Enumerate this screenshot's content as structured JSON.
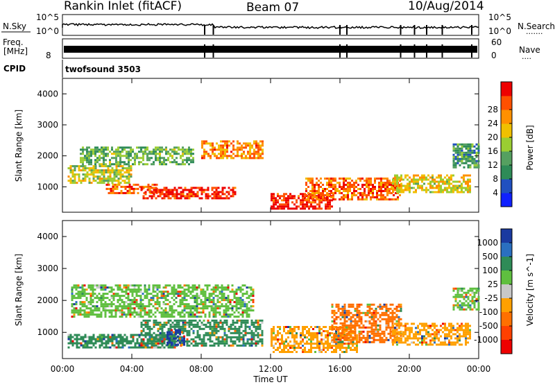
{
  "header": {
    "station": "Rankin Inlet (fitACF)",
    "beam": "Beam 07",
    "date": "10/Aug/2014"
  },
  "top_panels": {
    "nsky_label": "N.Sky",
    "nsearch_label": "N.Search",
    "nsearch_marker": ".......",
    "nsky_ticks": [
      "10^5",
      "10^0"
    ],
    "nsearch_ticks": [
      "10^5",
      "10^0"
    ],
    "freq_label_1": "Freq.",
    "freq_label_2": "[MHz]",
    "freq_ticks": [
      "8"
    ],
    "nave_label": "Nave",
    "nave_marker": "....",
    "nave_ticks": [
      "60",
      "0"
    ],
    "cpid_label": "CPID",
    "cpid_value": "twofsound 3503"
  },
  "colors": {
    "power_scale": [
      "#1020ff",
      "#2050c0",
      "#2e8b57",
      "#55a060",
      "#9acd32",
      "#f0c000",
      "#ff9000",
      "#ff5000",
      "#ee0000"
    ],
    "velocity_scale": [
      "#1a3aa0",
      "#2a6fc0",
      "#2e8b57",
      "#5fbf3f",
      "#c8c8c8",
      "#ffa000",
      "#ff7000",
      "#ff4000",
      "#ee0000"
    ]
  },
  "chart_data": [
    {
      "type": "heatmap",
      "quantity": "Power",
      "ylabel": "Slant Range [km]",
      "xlabel": "",
      "ylim": [
        180,
        4500
      ],
      "xlim": [
        "00:00",
        "24:00"
      ],
      "y_ticks": [
        1000,
        2000,
        3000,
        4000
      ],
      "colorbar": {
        "label": "Power [dB]",
        "ticks": [
          4,
          8,
          12,
          16,
          20,
          24,
          28
        ],
        "range": [
          0,
          30
        ]
      },
      "regions": [
        {
          "x": [
            1.0,
            7.5
          ],
          "y": [
            1700,
            2300
          ],
          "value": 12
        },
        {
          "x": [
            0.3,
            4.0
          ],
          "y": [
            1100,
            1700
          ],
          "value": 16
        },
        {
          "x": [
            2.5,
            5.5
          ],
          "y": [
            800,
            1100
          ],
          "value": 24
        },
        {
          "x": [
            4.5,
            10.0
          ],
          "y": [
            600,
            1000
          ],
          "value": 27
        },
        {
          "x": [
            8.0,
            11.5
          ],
          "y": [
            1900,
            2500
          ],
          "value": 22
        },
        {
          "x": [
            12.0,
            15.5
          ],
          "y": [
            300,
            800
          ],
          "value": 28
        },
        {
          "x": [
            14.0,
            19.5
          ],
          "y": [
            600,
            1300
          ],
          "value": 24
        },
        {
          "x": [
            19.0,
            23.5
          ],
          "y": [
            800,
            1400
          ],
          "value": 18
        },
        {
          "x": [
            22.5,
            24.0
          ],
          "y": [
            1600,
            2400
          ],
          "value": 10
        }
      ]
    },
    {
      "type": "heatmap",
      "quantity": "Velocity",
      "ylabel": "Slant Range [km]",
      "xlabel": "Time UT",
      "ylim": [
        180,
        4500
      ],
      "xlim": [
        "00:00",
        "24:00"
      ],
      "x_ticks": [
        "00:00",
        "04:00",
        "08:00",
        "12:00",
        "16:00",
        "20:00",
        "00:00"
      ],
      "y_ticks": [
        1000,
        2000,
        3000,
        4000
      ],
      "colorbar": {
        "label": "Velocity [m s^-1]",
        "ticks": [
          "1000",
          "500",
          "100",
          "25",
          "-25",
          "-100",
          "-500",
          "-1000"
        ]
      },
      "regions": [
        {
          "x": [
            0.5,
            11.0
          ],
          "y": [
            1500,
            2500
          ],
          "value": "25"
        },
        {
          "x": [
            0.3,
            6.5
          ],
          "y": [
            550,
            950
          ],
          "value": "100"
        },
        {
          "x": [
            4.5,
            11.5
          ],
          "y": [
            600,
            1400
          ],
          "value": "100"
        },
        {
          "x": [
            6.0,
            7.0
          ],
          "y": [
            600,
            1100
          ],
          "value": "1000"
        },
        {
          "x": [
            12.0,
            17.0
          ],
          "y": [
            400,
            1200
          ],
          "value": "-100"
        },
        {
          "x": [
            15.5,
            19.5
          ],
          "y": [
            700,
            1900
          ],
          "value": "-500"
        },
        {
          "x": [
            19.0,
            23.5
          ],
          "y": [
            600,
            1300
          ],
          "value": "-100"
        },
        {
          "x": [
            22.5,
            24.0
          ],
          "y": [
            1700,
            2400
          ],
          "value": "25"
        }
      ]
    }
  ]
}
